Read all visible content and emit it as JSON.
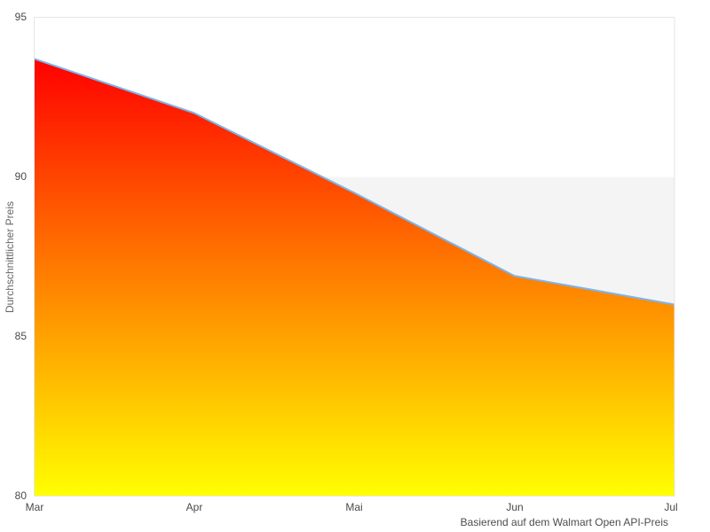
{
  "chart_data": {
    "type": "area",
    "categories": [
      "Mar",
      "Apr",
      "Mai",
      "Jun",
      "Jul"
    ],
    "values": [
      93.7,
      92.0,
      89.5,
      86.9,
      86.0
    ],
    "ytick_labels": [
      "95",
      "90",
      "85",
      "80"
    ],
    "ylim": [
      80,
      95
    ],
    "xlabel": "",
    "ylabel": "Durchschnittlicher Preis",
    "caption": "Basierend auf dem Walmart Open API-Preis",
    "legend": "none",
    "grid": "horizontal band between 85 and 90 only",
    "band": {
      "from": 85,
      "to": 90,
      "color": "#f4f4f4"
    },
    "line_color": "#7cb5ec",
    "gradient": {
      "top": "#ff0000",
      "bottom": "#ffff00"
    },
    "axis_color": "#e6e6e6",
    "plot_background": "#ffffff"
  }
}
